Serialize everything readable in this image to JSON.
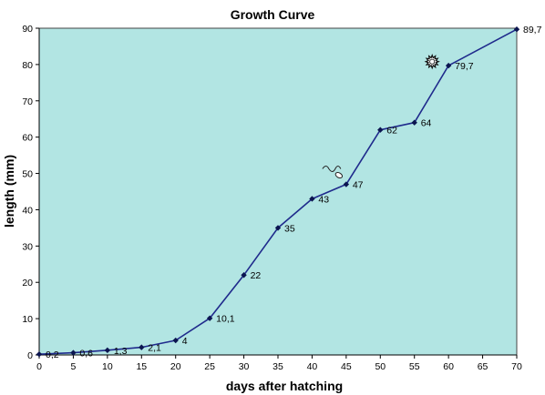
{
  "chart_data": {
    "type": "line",
    "title": "Growth Curve",
    "xlabel": "days after hatching",
    "ylabel": "length (mm)",
    "xlim": [
      0,
      70
    ],
    "ylim": [
      0,
      90
    ],
    "x_ticks": [
      0,
      5,
      10,
      15,
      20,
      25,
      30,
      35,
      40,
      45,
      50,
      55,
      60,
      65,
      70
    ],
    "y_ticks": [
      0,
      10,
      20,
      30,
      40,
      50,
      60,
      70,
      80,
      90
    ],
    "grid": false,
    "legend": false,
    "plot_background": "#b2e5e3",
    "line_color": "#1f2a8c",
    "marker_color": "#0b1550",
    "series": [
      {
        "x": [
          0,
          5,
          10,
          15,
          20,
          25,
          30,
          35,
          40,
          45,
          50,
          55,
          60,
          70
        ],
        "y": [
          0.2,
          0.6,
          1.3,
          2.1,
          4,
          10.1,
          22,
          35,
          43,
          47,
          62,
          64,
          79.7,
          89.7
        ],
        "labels": [
          "0,2",
          "0,6",
          "1,3",
          "2,1",
          "4",
          "10,1",
          "22",
          "35",
          "43",
          "47",
          "62",
          "64",
          "79,7",
          "89,7"
        ]
      }
    ],
    "annotations": [
      {
        "icon": "tadpole-icon",
        "near_x": 45
      },
      {
        "icon": "sun-icon",
        "near_x": 60
      }
    ]
  }
}
